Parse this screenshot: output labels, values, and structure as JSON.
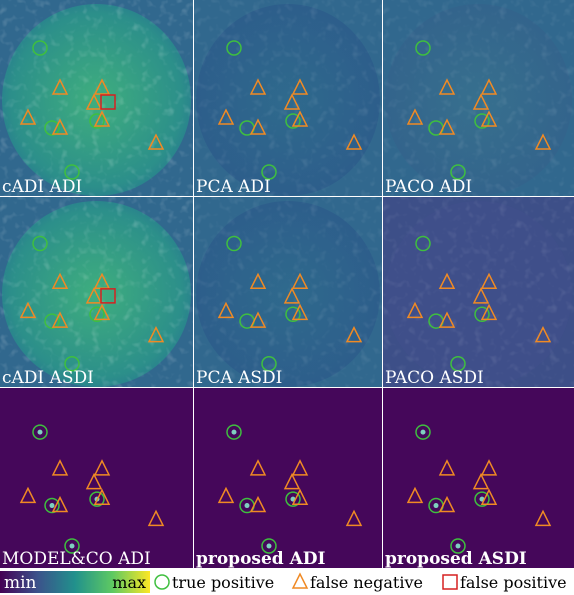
{
  "panels": [
    {
      "label": "cADI ADI",
      "bold": false
    },
    {
      "label": "PCA ADI",
      "bold": false
    },
    {
      "label": "PACO ADI",
      "bold": false
    },
    {
      "label": "cADI ASDI",
      "bold": false
    },
    {
      "label": "PCA ASDI",
      "bold": false
    },
    {
      "label": "PACO ASDI",
      "bold": false
    },
    {
      "label": "MODEL&CO ADI",
      "bold": false
    },
    {
      "label": "proposed ADI",
      "bold": true
    },
    {
      "label": "proposed ASDI",
      "bold": true
    }
  ],
  "legend": {
    "colorbar": {
      "min": "min",
      "max": "max"
    },
    "items": [
      {
        "label": "true positive",
        "shape": "circle",
        "color": "#3fbf3f"
      },
      {
        "label": "false negative",
        "shape": "triangle",
        "color": "#f08a24"
      },
      {
        "label": "false positive",
        "shape": "square",
        "color": "#d62020"
      }
    ]
  }
}
